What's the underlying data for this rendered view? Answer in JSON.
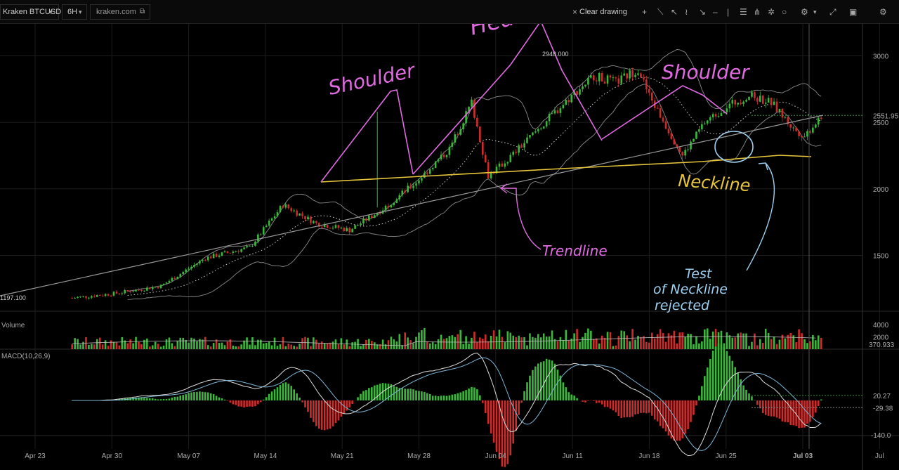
{
  "toolbar": {
    "symbol": "Kraken BTCUSD",
    "interval": "6H",
    "source": "kraken.com",
    "clear_drawing": "Clear drawing"
  },
  "panels": {
    "volume_label": "Volume",
    "macd_label": "MACD(10,26,9)"
  },
  "chart_data": {
    "type": "candlestick",
    "price_axis_ticks": [
      3000,
      2500,
      2000,
      1500
    ],
    "price_range": [
      1080,
      3240
    ],
    "volume_axis_ticks": [
      4000,
      2000
    ],
    "macd_axis_ticks": [
      -140.0
    ],
    "x_tick_labels": [
      "Apr 23",
      "Apr 30",
      "May 07",
      "May 14",
      "May 21",
      "May 28",
      "Jun 04",
      "Jun 11",
      "Jun 18",
      "Jun 25",
      "Jul 03",
      "Jul"
    ],
    "last_price_label": "2551.95",
    "last_volume_label": "370.933",
    "macd_value_labels": [
      "20.27",
      "-29.38"
    ],
    "high_marker": "2948.000",
    "low_marker": "1197.100",
    "price_path": [
      {
        "d": 0,
        "p": 1180
      },
      {
        "d": 4,
        "p": 1215
      },
      {
        "d": 8,
        "p": 1270
      },
      {
        "d": 12,
        "p": 1480
      },
      {
        "d": 16,
        "p": 1560
      },
      {
        "d": 19,
        "p": 1880
      },
      {
        "d": 22,
        "p": 1740
      },
      {
        "d": 25,
        "p": 1690
      },
      {
        "d": 28,
        "p": 1850
      },
      {
        "d": 31,
        "p": 2050
      },
      {
        "d": 34,
        "p": 2300
      },
      {
        "d": 36,
        "p": 2650
      },
      {
        "d": 37.5,
        "p": 2100
      },
      {
        "d": 39,
        "p": 2200
      },
      {
        "d": 42,
        "p": 2450
      },
      {
        "d": 45,
        "p": 2700
      },
      {
        "d": 47,
        "p": 2850
      },
      {
        "d": 49,
        "p": 2800
      },
      {
        "d": 51,
        "p": 2900
      },
      {
        "d": 52,
        "p": 2700
      },
      {
        "d": 54,
        "p": 2400
      },
      {
        "d": 55,
        "p": 2250
      },
      {
        "d": 57,
        "p": 2500
      },
      {
        "d": 59,
        "p": 2620
      },
      {
        "d": 61,
        "p": 2700
      },
      {
        "d": 63,
        "p": 2650
      },
      {
        "d": 65,
        "p": 2450
      },
      {
        "d": 66,
        "p": 2400
      },
      {
        "d": 67.5,
        "p": 2550
      }
    ],
    "annotations": [
      "Shoulder",
      "Head",
      "Shoulder",
      "Neckline",
      "Trendline",
      "Test",
      "of Neckline",
      "rejected"
    ]
  }
}
